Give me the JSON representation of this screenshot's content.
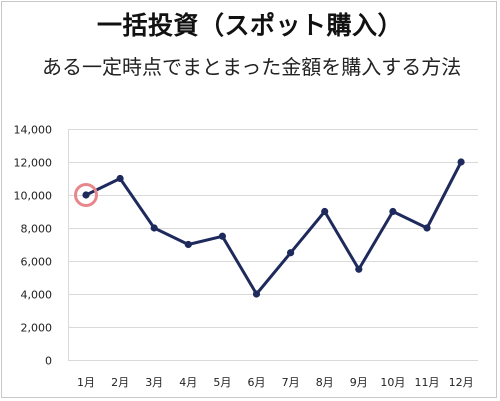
{
  "chart_data": {
    "type": "line",
    "title": "一括投資（スポット購入）",
    "subtitle": "ある一定時点でまとまった金額を購入する方法",
    "categories": [
      "1月",
      "2月",
      "3月",
      "4月",
      "5月",
      "6月",
      "7月",
      "8月",
      "9月",
      "10月",
      "11月",
      "12月"
    ],
    "series": [
      {
        "values": [
          10000,
          11000,
          8000,
          7000,
          7500,
          4000,
          6500,
          9000,
          5500,
          9000,
          8000,
          12000
        ]
      }
    ],
    "ylim": [
      0,
      14000
    ],
    "yticks": [
      0,
      2000,
      4000,
      6000,
      8000,
      10000,
      12000,
      14000
    ],
    "ytick_labels": [
      "0",
      "2,000",
      "4,000",
      "6,000",
      "8,000",
      "10,000",
      "12,000",
      "14,000"
    ],
    "grid": true,
    "line_color": "#1f2a5c",
    "highlight_index": 0,
    "highlight_color": "#e8868c"
  }
}
